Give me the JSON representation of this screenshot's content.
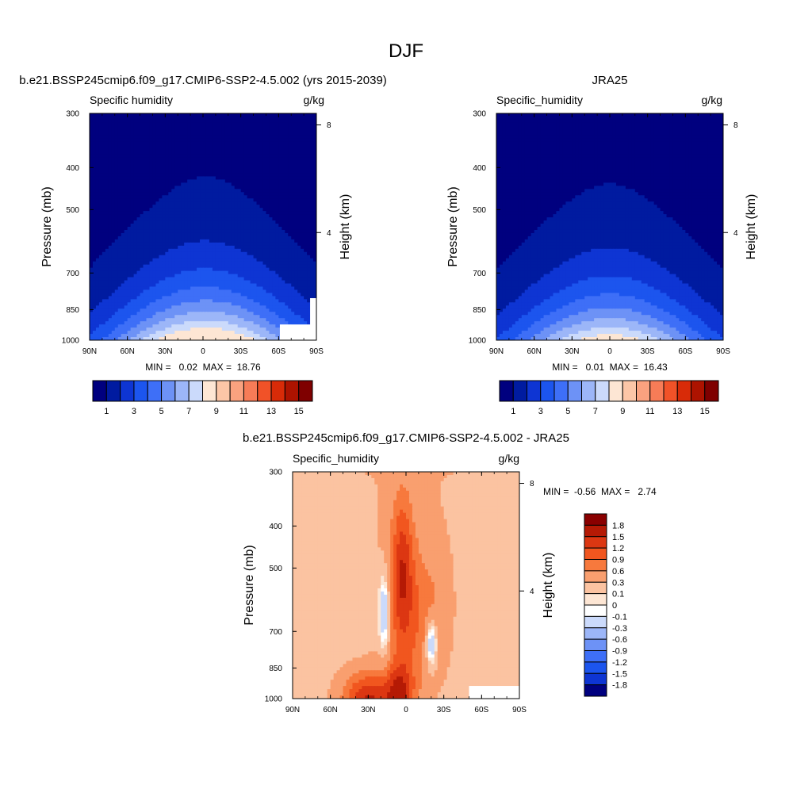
{
  "figure": {
    "title": "DJF"
  },
  "chart_data": [
    {
      "type": "heatmap",
      "title": "b.e21.BSSP245cmip6.f09_g17.CMIP6-SSP2-4.5.002 (yrs 2015-2039)",
      "left_label": "Specific humidity",
      "right_label": "g/kg",
      "xlabel": "",
      "ylabel": "Pressure (mb)",
      "y2label": "Height (km)",
      "x_ticks": [
        "90N",
        "60N",
        "30N",
        "0",
        "30S",
        "60S",
        "90S"
      ],
      "x_values": [
        90,
        60,
        30,
        0,
        -30,
        -60,
        -90
      ],
      "y_ticks": [
        "300",
        "400",
        "500",
        "700",
        "850",
        "1000"
      ],
      "y_values": [
        300,
        400,
        500,
        700,
        850,
        1000
      ],
      "y2_ticks": [
        "8",
        "4"
      ],
      "ylim": [
        1000,
        300
      ],
      "xlim": [
        90,
        -90
      ],
      "stats": "MIN =   0.02  MAX =  18.76",
      "levels": [
        "1",
        "3",
        "5",
        "7",
        "9",
        "11",
        "13",
        "15"
      ],
      "colors": [
        "#00007f",
        "#001ba0",
        "#0e35d3",
        "#1c55ee",
        "#3e6ff7",
        "#6d92f6",
        "#9cb6f8",
        "#cbdafb",
        "#fde6d4",
        "#fcc6a7",
        "#faa27f",
        "#f77c57",
        "#f15228",
        "#d82b08",
        "#ad1300",
        "#7f0000"
      ],
      "peak_value": 18.76,
      "peak_lat": -2
    },
    {
      "type": "heatmap",
      "title": "JRA25",
      "left_label": "Specific_humidity",
      "right_label": "g/kg",
      "xlabel": "",
      "ylabel": "Pressure (mb)",
      "y2label": "Height (km)",
      "x_ticks": [
        "90N",
        "60N",
        "30N",
        "0",
        "30S",
        "60S",
        "90S"
      ],
      "x_values": [
        90,
        60,
        30,
        0,
        -30,
        -60,
        -90
      ],
      "y_ticks": [
        "300",
        "400",
        "500",
        "700",
        "850",
        "1000"
      ],
      "y_values": [
        300,
        400,
        500,
        700,
        850,
        1000
      ],
      "y2_ticks": [
        "8",
        "4"
      ],
      "ylim": [
        1000,
        300
      ],
      "xlim": [
        90,
        -90
      ],
      "stats": "MIN =   0.01  MAX =  16.43",
      "levels": [
        "1",
        "3",
        "5",
        "7",
        "9",
        "11",
        "13",
        "15"
      ],
      "colors": [
        "#00007f",
        "#001ba0",
        "#0e35d3",
        "#1c55ee",
        "#3e6ff7",
        "#6d92f6",
        "#9cb6f8",
        "#cbdafb",
        "#fde6d4",
        "#fcc6a7",
        "#faa27f",
        "#f77c57",
        "#f15228",
        "#d82b08",
        "#ad1300",
        "#7f0000"
      ],
      "peak_value": 16.43,
      "peak_lat": 0
    },
    {
      "type": "heatmap",
      "title": "b.e21.BSSP245cmip6.f09_g17.CMIP6-SSP2-4.5.002 - JRA25",
      "left_label": "Specific_humidity",
      "right_label": "g/kg",
      "xlabel": "",
      "ylabel": "Pressure (mb)",
      "y2label": "Height (km)",
      "x_ticks": [
        "90N",
        "60N",
        "30N",
        "0",
        "30S",
        "60S",
        "90S"
      ],
      "x_values": [
        90,
        60,
        30,
        0,
        -30,
        -60,
        -90
      ],
      "y_ticks": [
        "300",
        "400",
        "500",
        "700",
        "850",
        "1000"
      ],
      "y_values": [
        300,
        400,
        500,
        700,
        850,
        1000
      ],
      "y2_ticks": [
        "8",
        "4"
      ],
      "ylim": [
        1000,
        300
      ],
      "xlim": [
        90,
        -90
      ],
      "stats": "MIN =  -0.56  MAX =   2.74",
      "levels": [
        "1.8",
        "1.5",
        "1.2",
        "0.9",
        "0.6",
        "0.3",
        "0.1",
        "0",
        "-0.1",
        "-0.3",
        "-0.6",
        "-0.9",
        "-1.2",
        "-1.5",
        "-1.8"
      ],
      "colors": [
        "#8a0000",
        "#b51a05",
        "#dc3712",
        "#f1561f",
        "#f7793d",
        "#f99f6f",
        "#fbc3a1",
        "#fde6d4",
        "#ffffff",
        "#cbdafb",
        "#9cb6f8",
        "#6d92f6",
        "#3e6ff7",
        "#1c55ee",
        "#0e35d3",
        "#00007f"
      ]
    }
  ]
}
